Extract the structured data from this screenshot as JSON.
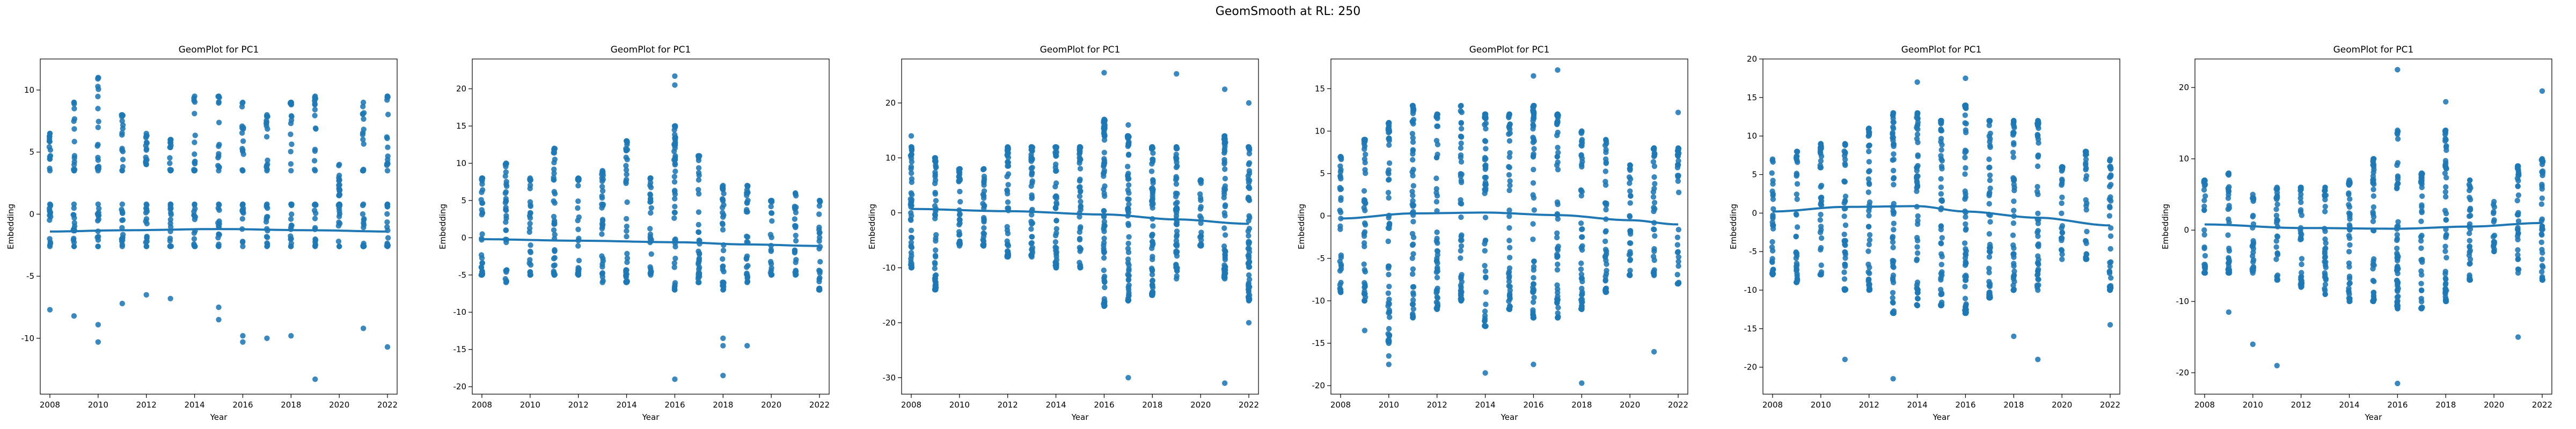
{
  "figure": {
    "suptitle": "GeomSmooth at RL: 250"
  },
  "colors": {
    "series": "#1f77b4",
    "axes": "#000000",
    "background": "#ffffff"
  },
  "chart_data": [
    {
      "type": "scatter",
      "title": "GeomPlot for PC1",
      "xlabel": "Year",
      "ylabel": "Embedding",
      "xlim": [
        2007.6,
        2022.4
      ],
      "ylim": [
        -14.5,
        12.5
      ],
      "xticks": [
        2008,
        2010,
        2012,
        2014,
        2016,
        2018,
        2020,
        2022
      ],
      "yticks": [
        -10,
        -5,
        0,
        5,
        10
      ],
      "grid": false,
      "clusters": [
        {
          "x": 2008,
          "lo": -2.6,
          "hi": 0.8
        },
        {
          "x": 2008,
          "lo": 3.5,
          "hi": 6.5
        },
        {
          "x": 2009,
          "lo": -2.6,
          "hi": 0.8
        },
        {
          "x": 2009,
          "lo": 3.5,
          "hi": 9
        },
        {
          "x": 2010,
          "lo": -2.6,
          "hi": 0.8
        },
        {
          "x": 2010,
          "lo": 3.5,
          "hi": 11
        },
        {
          "x": 2011,
          "lo": -2.6,
          "hi": 0.8
        },
        {
          "x": 2011,
          "lo": 3.5,
          "hi": 8
        },
        {
          "x": 2012,
          "lo": -2.6,
          "hi": 0.8
        },
        {
          "x": 2012,
          "lo": 4,
          "hi": 6.5
        },
        {
          "x": 2013,
          "lo": -2.6,
          "hi": 0.8
        },
        {
          "x": 2013,
          "lo": 3.5,
          "hi": 6
        },
        {
          "x": 2014,
          "lo": -2.6,
          "hi": 0.8
        },
        {
          "x": 2014,
          "lo": 3.5,
          "hi": 9.5
        },
        {
          "x": 2015,
          "lo": -2.6,
          "hi": 0.8
        },
        {
          "x": 2015,
          "lo": 3.5,
          "hi": 9.5
        },
        {
          "x": 2016,
          "lo": -2.6,
          "hi": 0.8
        },
        {
          "x": 2016,
          "lo": 3.5,
          "hi": 9
        },
        {
          "x": 2017,
          "lo": -2.6,
          "hi": 0.8
        },
        {
          "x": 2017,
          "lo": 3.5,
          "hi": 8
        },
        {
          "x": 2018,
          "lo": -2.6,
          "hi": 0.8
        },
        {
          "x": 2018,
          "lo": 3.5,
          "hi": 9
        },
        {
          "x": 2019,
          "lo": -2.6,
          "hi": 0.8
        },
        {
          "x": 2019,
          "lo": 3.5,
          "hi": 9.5
        },
        {
          "x": 2020,
          "lo": -2.6,
          "hi": 0.8
        },
        {
          "x": 2020,
          "lo": 1.5,
          "hi": 4
        },
        {
          "x": 2021,
          "lo": -2.6,
          "hi": 0.8
        },
        {
          "x": 2021,
          "lo": 3.5,
          "hi": 9
        },
        {
          "x": 2022,
          "lo": -2.6,
          "hi": 0.8
        },
        {
          "x": 2022,
          "lo": 3.5,
          "hi": 9.5
        }
      ],
      "outliers": [
        [
          2008,
          -7.7
        ],
        [
          2009,
          -8.2
        ],
        [
          2010,
          -8.9
        ],
        [
          2010,
          -10.3
        ],
        [
          2011,
          -7.2
        ],
        [
          2012,
          -6.5
        ],
        [
          2013,
          -6.8
        ],
        [
          2015,
          -7.5
        ],
        [
          2015,
          -8.5
        ],
        [
          2016,
          -9.8
        ],
        [
          2016,
          -10.3
        ],
        [
          2017,
          -10
        ],
        [
          2018,
          -9.8
        ],
        [
          2019,
          -13.3
        ],
        [
          2021,
          -9.2
        ],
        [
          2022,
          -10.7
        ]
      ],
      "smooth": {
        "x": [
          2008,
          2011,
          2015,
          2019,
          2022
        ],
        "y": [
          -1.4,
          -1.3,
          -1.2,
          -1.3,
          -1.4
        ]
      }
    },
    {
      "type": "scatter",
      "title": "GeomPlot for PC1",
      "xlabel": "Year",
      "ylabel": "Embedding",
      "xlim": [
        2007.6,
        2022.4
      ],
      "ylim": [
        -21,
        24
      ],
      "xticks": [
        2008,
        2010,
        2012,
        2014,
        2016,
        2018,
        2020,
        2022
      ],
      "yticks": [
        -20,
        -15,
        -10,
        -5,
        0,
        5,
        10,
        15,
        20
      ],
      "grid": false,
      "clusters": [
        {
          "x": 2008,
          "lo": -5,
          "hi": 8
        },
        {
          "x": 2009,
          "lo": -6,
          "hi": 10
        },
        {
          "x": 2010,
          "lo": -5,
          "hi": 8
        },
        {
          "x": 2011,
          "lo": -5,
          "hi": 12
        },
        {
          "x": 2012,
          "lo": -5,
          "hi": 8
        },
        {
          "x": 2013,
          "lo": -6,
          "hi": 9
        },
        {
          "x": 2014,
          "lo": -6,
          "hi": 13
        },
        {
          "x": 2015,
          "lo": -5,
          "hi": 8
        },
        {
          "x": 2016,
          "lo": -7,
          "hi": 15
        },
        {
          "x": 2017,
          "lo": -6,
          "hi": 11
        },
        {
          "x": 2018,
          "lo": -7,
          "hi": 7
        },
        {
          "x": 2019,
          "lo": -6,
          "hi": 7
        },
        {
          "x": 2020,
          "lo": -5,
          "hi": 5
        },
        {
          "x": 2021,
          "lo": -5,
          "hi": 6
        },
        {
          "x": 2022,
          "lo": -7,
          "hi": 5
        }
      ],
      "outliers": [
        [
          2016,
          21.7
        ],
        [
          2016,
          20.5
        ],
        [
          2016,
          -19
        ],
        [
          2018,
          -13.5
        ],
        [
          2018,
          -14.5
        ],
        [
          2018,
          -18.5
        ],
        [
          2019,
          -14.5
        ]
      ],
      "smooth": {
        "x": [
          2008,
          2012,
          2016,
          2019,
          2022
        ],
        "y": [
          -0.2,
          -0.4,
          -0.6,
          -0.9,
          -1.1
        ]
      }
    },
    {
      "type": "scatter",
      "title": "GeomPlot for PC1",
      "xlabel": "Year",
      "ylabel": "Embedding",
      "xlim": [
        2007.6,
        2022.4
      ],
      "ylim": [
        -33,
        28
      ],
      "xticks": [
        2008,
        2010,
        2012,
        2014,
        2016,
        2018,
        2020,
        2022
      ],
      "yticks": [
        -30,
        -20,
        -10,
        0,
        10,
        20
      ],
      "grid": false,
      "clusters": [
        {
          "x": 2008,
          "lo": -10,
          "hi": 12
        },
        {
          "x": 2009,
          "lo": -14,
          "hi": 10
        },
        {
          "x": 2010,
          "lo": -6,
          "hi": 8
        },
        {
          "x": 2011,
          "lo": -6,
          "hi": 8
        },
        {
          "x": 2012,
          "lo": -8,
          "hi": 12
        },
        {
          "x": 2013,
          "lo": -8,
          "hi": 12
        },
        {
          "x": 2014,
          "lo": -10,
          "hi": 12
        },
        {
          "x": 2015,
          "lo": -10,
          "hi": 12
        },
        {
          "x": 2016,
          "lo": -17,
          "hi": 17
        },
        {
          "x": 2017,
          "lo": -16,
          "hi": 14
        },
        {
          "x": 2018,
          "lo": -15,
          "hi": 12
        },
        {
          "x": 2019,
          "lo": -12,
          "hi": 12
        },
        {
          "x": 2020,
          "lo": -6,
          "hi": 6
        },
        {
          "x": 2021,
          "lo": -12,
          "hi": 14
        },
        {
          "x": 2022,
          "lo": -16,
          "hi": 12
        }
      ],
      "outliers": [
        [
          2008,
          14
        ],
        [
          2016,
          25.5
        ],
        [
          2017,
          -30
        ],
        [
          2017,
          16
        ],
        [
          2019,
          25.3
        ],
        [
          2021,
          -31
        ],
        [
          2021,
          22.5
        ],
        [
          2022,
          20
        ],
        [
          2022,
          -20
        ]
      ],
      "smooth": {
        "x": [
          2008,
          2012,
          2016,
          2019,
          2022
        ],
        "y": [
          0.7,
          0.3,
          -0.3,
          -1.2,
          -2
        ]
      }
    },
    {
      "type": "scatter",
      "title": "GeomPlot for PC1",
      "xlabel": "Year",
      "ylabel": "Embedding",
      "xlim": [
        2007.6,
        2022.4
      ],
      "ylim": [
        -21,
        18.5
      ],
      "xticks": [
        2008,
        2010,
        2012,
        2014,
        2016,
        2018,
        2020,
        2022
      ],
      "yticks": [
        -20,
        -15,
        -10,
        -5,
        0,
        5,
        10,
        15
      ],
      "grid": false,
      "clusters": [
        {
          "x": 2008,
          "lo": -9,
          "hi": 7
        },
        {
          "x": 2009,
          "lo": -10,
          "hi": 9
        },
        {
          "x": 2010,
          "lo": -15,
          "hi": 11
        },
        {
          "x": 2011,
          "lo": -12,
          "hi": 13
        },
        {
          "x": 2012,
          "lo": -11,
          "hi": 12
        },
        {
          "x": 2013,
          "lo": -10,
          "hi": 13
        },
        {
          "x": 2014,
          "lo": -13,
          "hi": 12
        },
        {
          "x": 2015,
          "lo": -11,
          "hi": 12
        },
        {
          "x": 2016,
          "lo": -12,
          "hi": 13
        },
        {
          "x": 2017,
          "lo": -12,
          "hi": 12
        },
        {
          "x": 2018,
          "lo": -11,
          "hi": 10
        },
        {
          "x": 2019,
          "lo": -9,
          "hi": 9
        },
        {
          "x": 2020,
          "lo": -7,
          "hi": 6
        },
        {
          "x": 2021,
          "lo": -7,
          "hi": 8
        },
        {
          "x": 2022,
          "lo": -8,
          "hi": 8
        }
      ],
      "outliers": [
        [
          2009,
          -13.5
        ],
        [
          2010,
          -16.5
        ],
        [
          2010,
          -17.5
        ],
        [
          2014,
          -18.5
        ],
        [
          2016,
          16.5
        ],
        [
          2016,
          -17.5
        ],
        [
          2017,
          17.2
        ],
        [
          2018,
          -19.7
        ],
        [
          2021,
          -16
        ],
        [
          2022,
          12.2
        ]
      ],
      "smooth": {
        "x": [
          2008,
          2011,
          2014,
          2017,
          2020,
          2022
        ],
        "y": [
          -0.3,
          0.3,
          0.4,
          0.1,
          -0.5,
          -1
        ]
      }
    },
    {
      "type": "scatter",
      "title": "GeomPlot for PC1",
      "xlabel": "Year",
      "ylabel": "Embedding",
      "xlim": [
        2007.6,
        2022.4
      ],
      "ylim": [
        -23.5,
        20
      ],
      "xticks": [
        2008,
        2010,
        2012,
        2014,
        2016,
        2018,
        2020,
        2022
      ],
      "yticks": [
        -20,
        -15,
        -10,
        -5,
        0,
        5,
        10,
        15,
        20
      ],
      "grid": false,
      "clusters": [
        {
          "x": 2008,
          "lo": -8,
          "hi": 7
        },
        {
          "x": 2009,
          "lo": -9,
          "hi": 8
        },
        {
          "x": 2010,
          "lo": -8,
          "hi": 9
        },
        {
          "x": 2011,
          "lo": -10,
          "hi": 9
        },
        {
          "x": 2012,
          "lo": -10,
          "hi": 11
        },
        {
          "x": 2013,
          "lo": -13,
          "hi": 13
        },
        {
          "x": 2014,
          "lo": -12,
          "hi": 13
        },
        {
          "x": 2015,
          "lo": -12,
          "hi": 12
        },
        {
          "x": 2016,
          "lo": -13,
          "hi": 14
        },
        {
          "x": 2017,
          "lo": -11,
          "hi": 12
        },
        {
          "x": 2018,
          "lo": -10,
          "hi": 12
        },
        {
          "x": 2019,
          "lo": -10,
          "hi": 12
        },
        {
          "x": 2020,
          "lo": -6,
          "hi": 6
        },
        {
          "x": 2021,
          "lo": -6,
          "hi": 8
        },
        {
          "x": 2022,
          "lo": -10,
          "hi": 7
        }
      ],
      "outliers": [
        [
          2011,
          -19
        ],
        [
          2013,
          -21.5
        ],
        [
          2014,
          17
        ],
        [
          2016,
          17.5
        ],
        [
          2018,
          -16
        ],
        [
          2019,
          -19
        ],
        [
          2022,
          -14.5
        ]
      ],
      "smooth": {
        "x": [
          2008,
          2011,
          2014,
          2016,
          2019,
          2022
        ],
        "y": [
          0.2,
          0.8,
          0.9,
          0.2,
          -0.6,
          -1.6
        ]
      }
    },
    {
      "type": "scatter",
      "title": "GeomPlot for PC1",
      "xlabel": "Year",
      "ylabel": "Embedding",
      "xlim": [
        2007.6,
        2022.4
      ],
      "ylim": [
        -23,
        24
      ],
      "xticks": [
        2008,
        2010,
        2012,
        2014,
        2016,
        2018,
        2020,
        2022
      ],
      "yticks": [
        -20,
        -10,
        0,
        10,
        20
      ],
      "grid": false,
      "clusters": [
        {
          "x": 2008,
          "lo": -6,
          "hi": 7
        },
        {
          "x": 2009,
          "lo": -6,
          "hi": 8
        },
        {
          "x": 2010,
          "lo": -6,
          "hi": 5
        },
        {
          "x": 2011,
          "lo": -7,
          "hi": 6
        },
        {
          "x": 2012,
          "lo": -8,
          "hi": 6
        },
        {
          "x": 2013,
          "lo": -9,
          "hi": 6
        },
        {
          "x": 2014,
          "lo": -10,
          "hi": 7
        },
        {
          "x": 2015,
          "lo": -10,
          "hi": 10
        },
        {
          "x": 2016,
          "lo": -11,
          "hi": 14
        },
        {
          "x": 2017,
          "lo": -11,
          "hi": 8
        },
        {
          "x": 2018,
          "lo": -10,
          "hi": 14
        },
        {
          "x": 2019,
          "lo": -7,
          "hi": 7
        },
        {
          "x": 2020,
          "lo": -3,
          "hi": 4
        },
        {
          "x": 2021,
          "lo": -6,
          "hi": 9
        },
        {
          "x": 2022,
          "lo": -7,
          "hi": 10
        }
      ],
      "outliers": [
        [
          2009,
          -11.5
        ],
        [
          2010,
          -16
        ],
        [
          2011,
          -19
        ],
        [
          2016,
          22.5
        ],
        [
          2016,
          -21.5
        ],
        [
          2018,
          18
        ],
        [
          2021,
          -15
        ],
        [
          2022,
          19.5
        ]
      ],
      "smooth": {
        "x": [
          2008,
          2012,
          2016,
          2019,
          2022
        ],
        "y": [
          0.8,
          0.3,
          0.2,
          0.5,
          1
        ]
      }
    }
  ]
}
